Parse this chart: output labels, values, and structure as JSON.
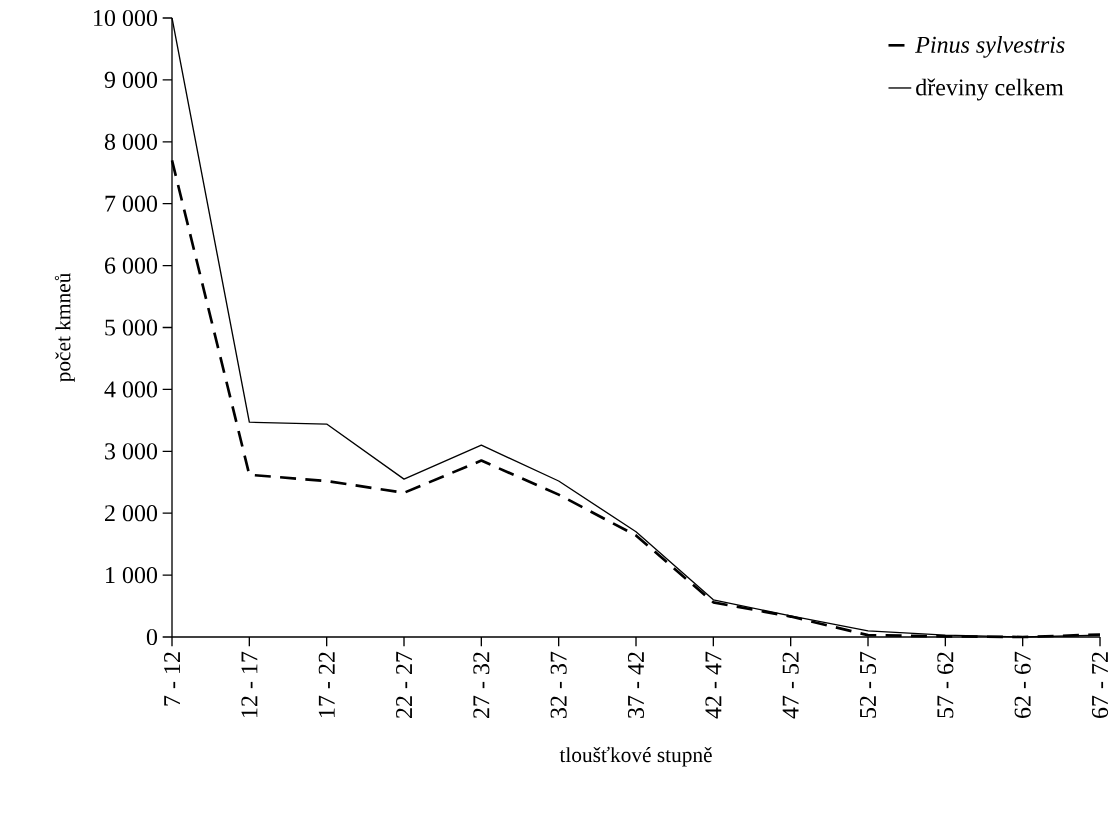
{
  "chart_data": {
    "type": "line",
    "xlabel": "tloušťkové stupně",
    "ylabel": "počet kmneů",
    "categories": [
      "7 - 12",
      "12 - 17",
      "17 - 22",
      "22 - 27",
      "27 - 32",
      "32 - 37",
      "37 - 42",
      "42 - 47",
      "47 - 52",
      "52 - 57",
      "57 - 62",
      "62 - 67",
      "67 - 72"
    ],
    "series": [
      {
        "name": "Pinus sylvestris",
        "color": "#000000",
        "line_style": "dashed",
        "values": [
          7700,
          2620,
          2520,
          2330,
          2850,
          2300,
          1640,
          560,
          330,
          30,
          10,
          0,
          40
        ]
      },
      {
        "name": "dřeviny celkem",
        "color": "#000000",
        "line_style": "solid",
        "values": [
          10000,
          3470,
          3440,
          2550,
          3100,
          2520,
          1700,
          600,
          340,
          100,
          30,
          0,
          30
        ]
      }
    ],
    "ylim": [
      0,
      10000
    ],
    "yticks": [
      0,
      {
        "value": 1000,
        "label": "1 000"
      },
      {
        "value": 2000,
        "label": "2 000"
      },
      {
        "value": 3000,
        "label": "3 000"
      },
      {
        "value": 4000,
        "label": "4 000"
      },
      {
        "value": 5000,
        "label": "5 000"
      },
      {
        "value": 6000,
        "label": "6 000"
      },
      {
        "value": 7000,
        "label": "7 000"
      },
      {
        "value": 8000,
        "label": "8 000"
      },
      {
        "value": 9000,
        "label": "9 000"
      },
      {
        "value": 10000,
        "label": "10 000"
      }
    ],
    "grid": false,
    "legend": "top right",
    "marker": "none"
  }
}
